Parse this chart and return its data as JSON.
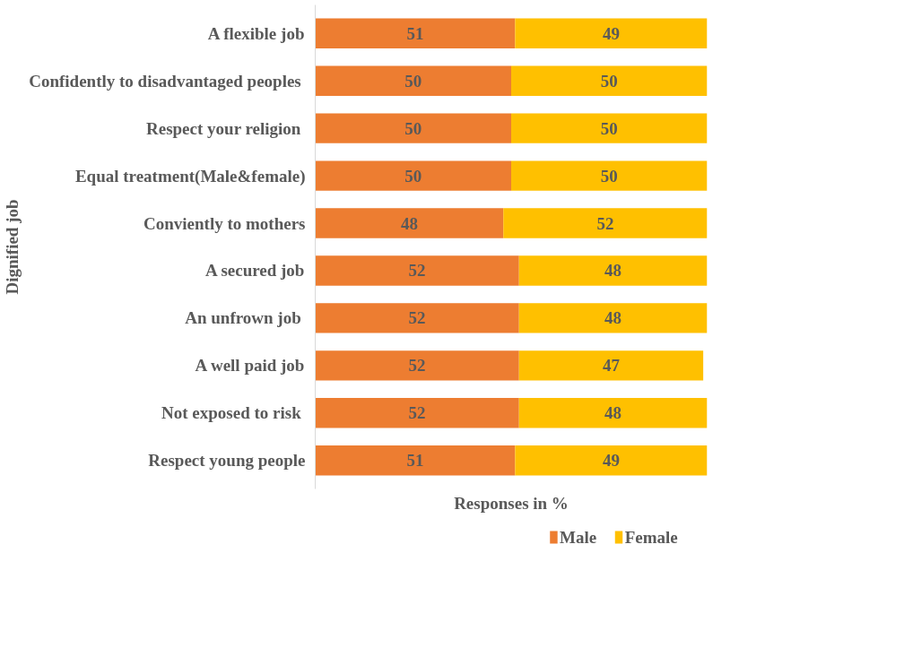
{
  "chart_data": {
    "type": "bar",
    "orientation": "horizontal",
    "stacked": true,
    "xlabel": "Responses in %",
    "ylabel": "Dignified job",
    "categories": [
      "A flexible job",
      "Confidently to disadvantaged peoples ",
      "Respect your religion ",
      "Equal treatment(Male&female)",
      "Conviently to mothers",
      "A secured job",
      "An unfrown job ",
      "A well paid job",
      "Not exposed to risk ",
      "Respect young people"
    ],
    "series": [
      {
        "name": "Male",
        "color": "#ed7d31",
        "values": [
          51,
          50,
          50,
          50,
          48,
          52,
          52,
          52,
          52,
          51
        ]
      },
      {
        "name": "Female",
        "color": "#ffc000",
        "values": [
          49,
          50,
          50,
          50,
          52,
          48,
          48,
          47,
          48,
          49
        ]
      }
    ],
    "xlim": [
      0,
      100
    ],
    "tick_labels": "y",
    "data_labels": true,
    "legend": "bottom",
    "grid": false
  }
}
